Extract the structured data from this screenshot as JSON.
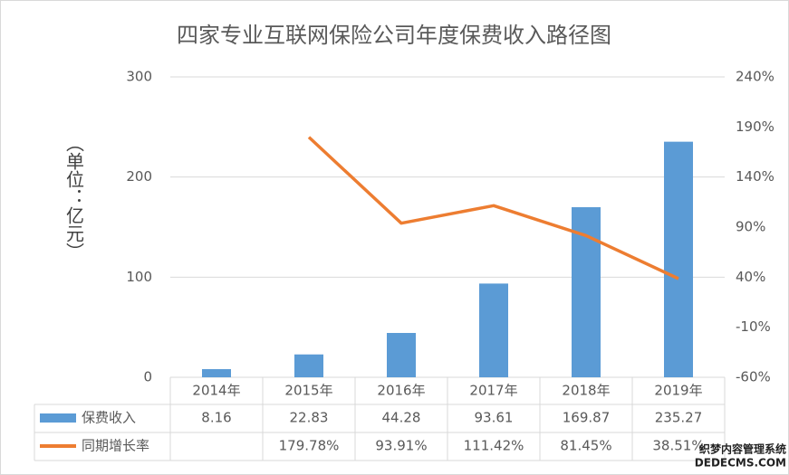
{
  "chart_data": {
    "type": "bar-line",
    "title": "四家专业互联网保险公司年度保费收入路径图",
    "y_label": "（单位：亿元）",
    "categories": [
      "2014年",
      "2015年",
      "2016年",
      "2017年",
      "2018年",
      "2019年"
    ],
    "series": [
      {
        "name": "保费收入",
        "type": "bar",
        "color": "#5b9bd5",
        "values": [
          8.16,
          22.83,
          44.28,
          93.61,
          169.87,
          235.27
        ]
      },
      {
        "name": "同期增长率",
        "type": "line",
        "axis": "y2",
        "color": "#ed7d31",
        "values": [
          null,
          179.78,
          93.91,
          111.42,
          81.45,
          38.51
        ],
        "value_labels": [
          null,
          "179.78%",
          "93.91%",
          "111.42%",
          "81.45%",
          "38.51%"
        ]
      }
    ],
    "ylim": [
      0,
      300
    ],
    "yticks": [
      0,
      100,
      200,
      300
    ],
    "y2lim": [
      -60,
      240
    ],
    "y2ticks": [
      {
        "value": -60,
        "label": "-60%"
      },
      {
        "value": -10,
        "label": "-10%"
      },
      {
        "value": 40,
        "label": "40%"
      },
      {
        "value": 90,
        "label": "90%"
      },
      {
        "value": 140,
        "label": "140%"
      },
      {
        "value": 190,
        "label": "190%"
      },
      {
        "value": 240,
        "label": "240%"
      }
    ],
    "grid": true,
    "watermark": [
      "织梦内容管理系统",
      "DEDECMS.COM"
    ]
  }
}
